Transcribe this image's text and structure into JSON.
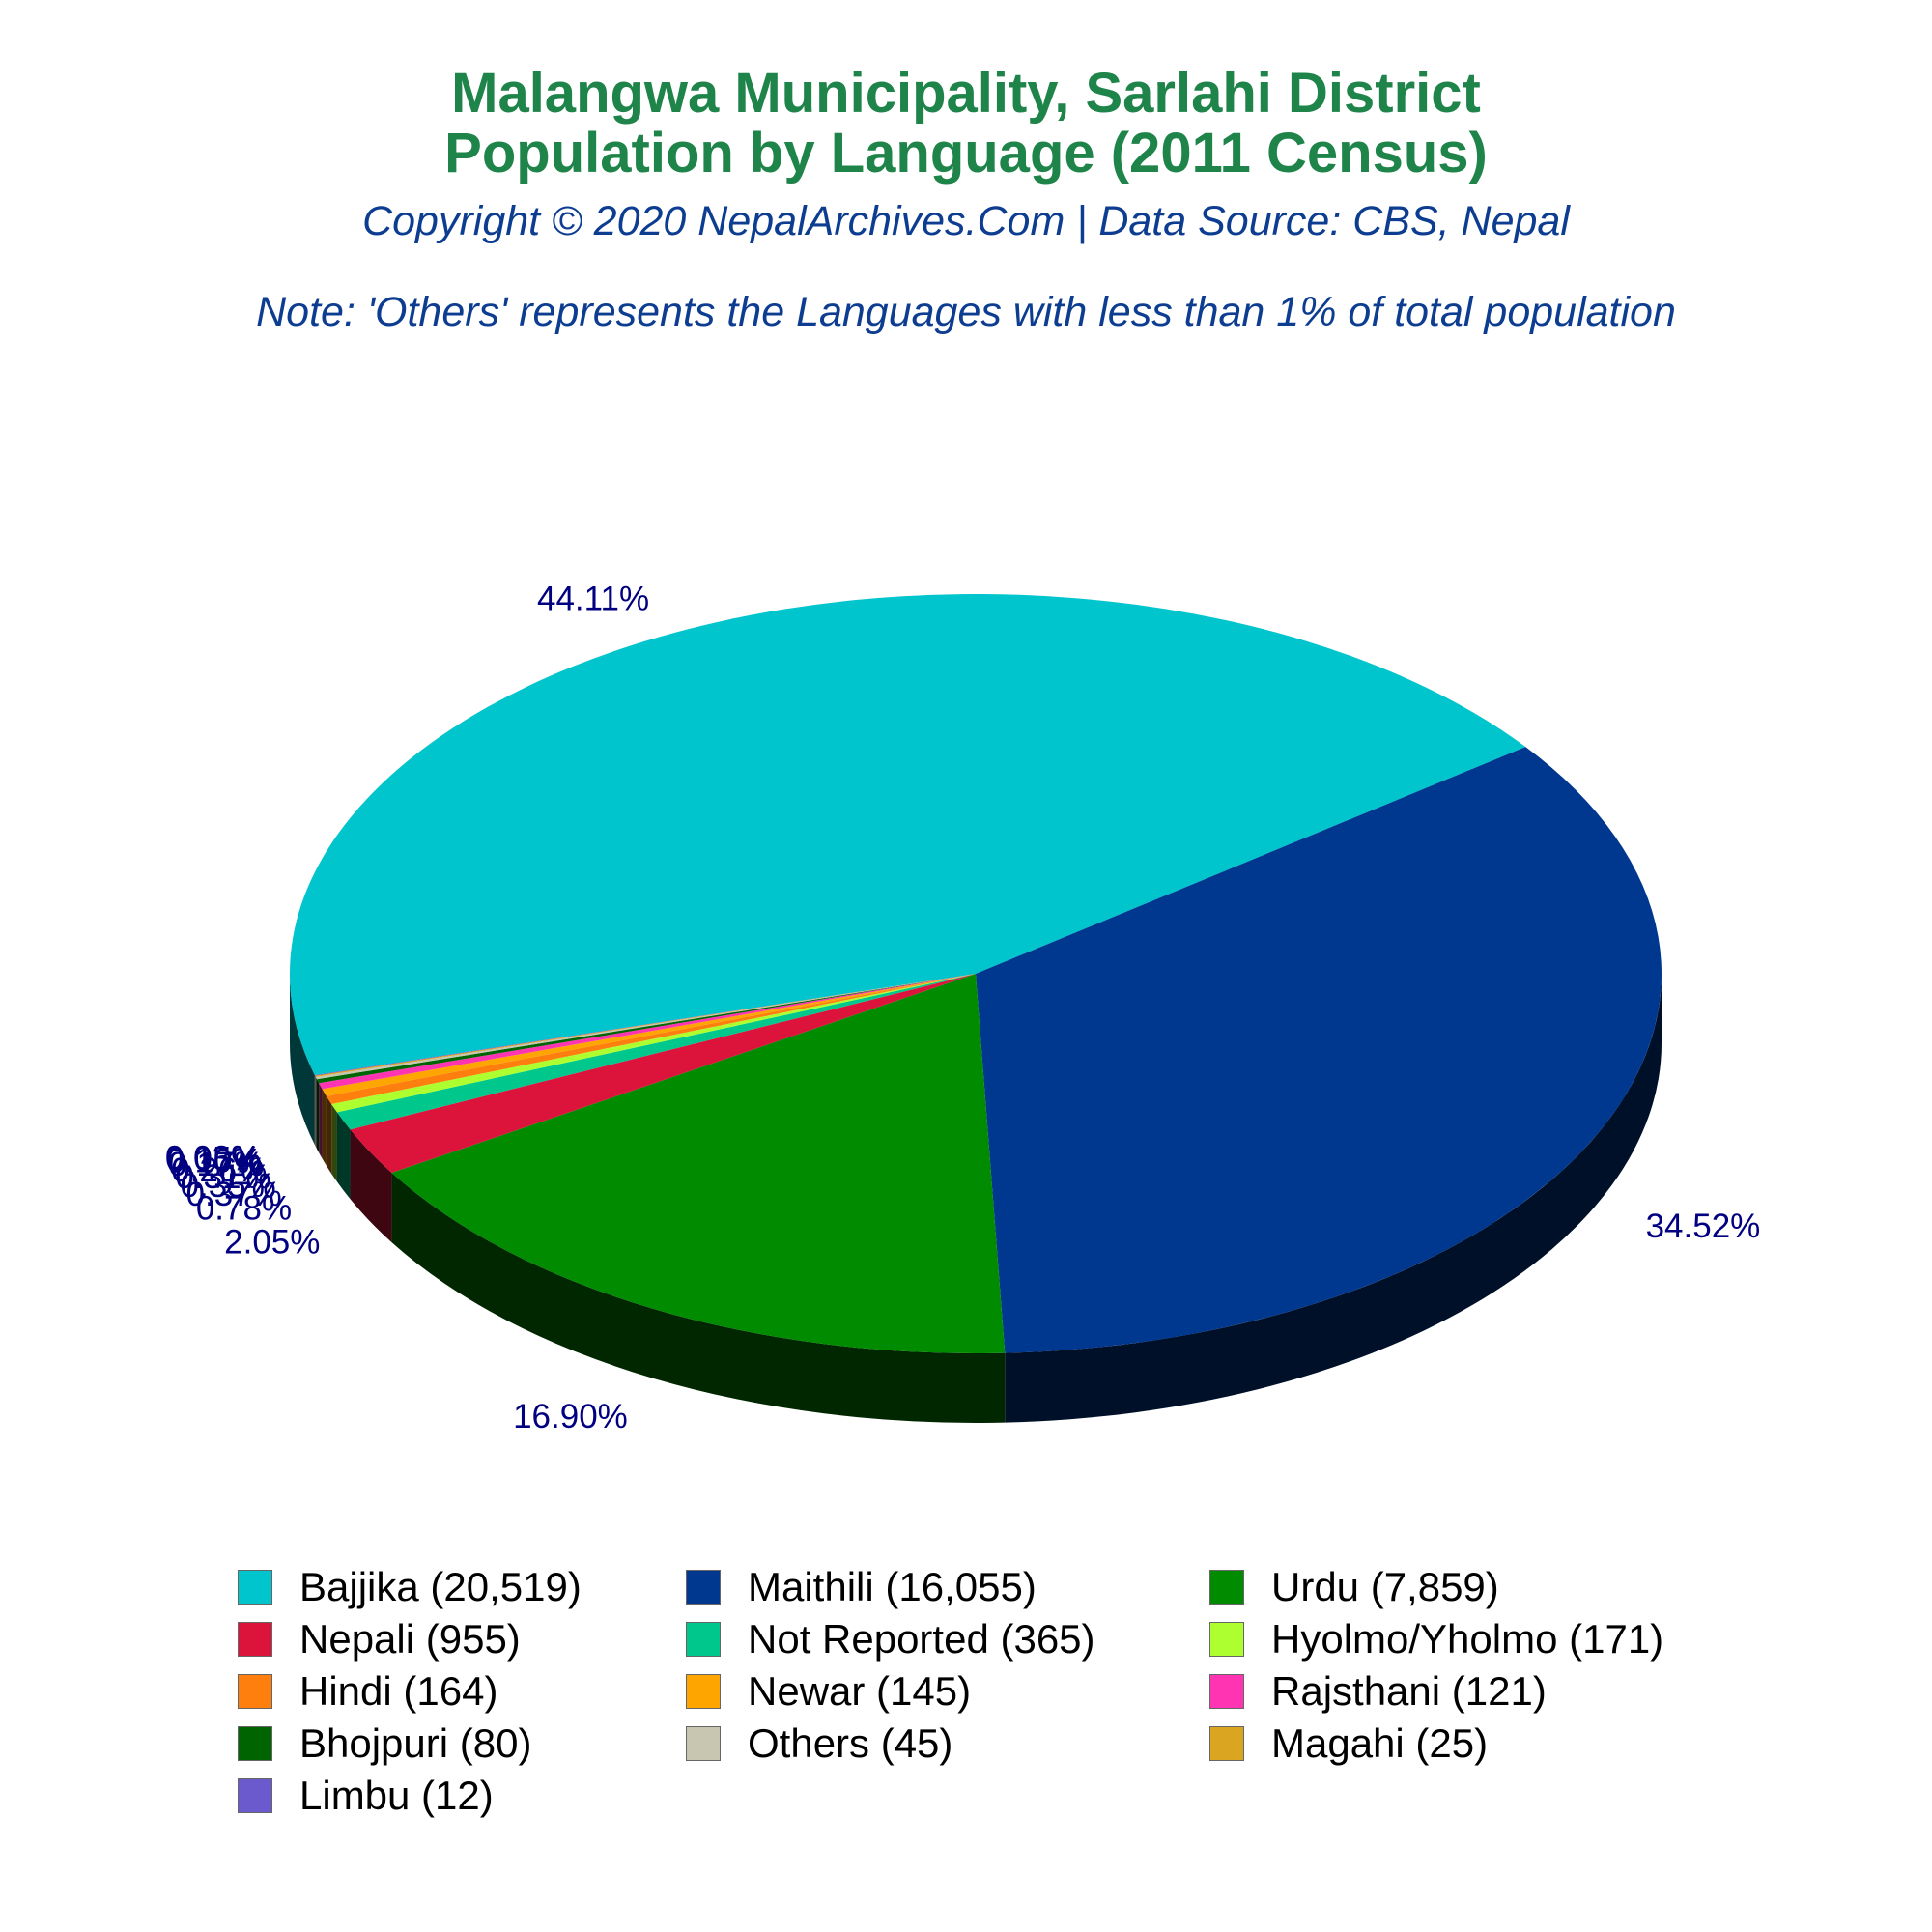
{
  "header": {
    "title_line1": "Malangwa Municipality, Sarlahi District",
    "title_line2": "Population by Language (2011 Census)",
    "copyright": "Copyright © 2020 NepalArchives.Com | Data Source: CBS, Nepal",
    "note": "Note: 'Others' represents the Languages with less than 1% of total population"
  },
  "chart_data": {
    "type": "pie",
    "style": "3d",
    "label_color": "#000080",
    "slices": [
      {
        "label": "Bajjika",
        "value": 20519,
        "percent_label": "44.11%",
        "color": "#00c5cd",
        "legend": "Bajjika (20,519)"
      },
      {
        "label": "Maithili",
        "value": 16055,
        "percent_label": "34.52%",
        "color": "#00388f",
        "legend": "Maithili (16,055)"
      },
      {
        "label": "Urdu",
        "value": 7859,
        "percent_label": "16.90%",
        "color": "#008b00",
        "legend": "Urdu (7,859)"
      },
      {
        "label": "Nepali",
        "value": 955,
        "percent_label": "2.05%",
        "color": "#dc143c",
        "legend": "Nepali (955)"
      },
      {
        "label": "Not Reported",
        "value": 365,
        "percent_label": "0.78%",
        "color": "#00c78c",
        "legend": "Not Reported (365)"
      },
      {
        "label": "Hyolmo/Yholmo",
        "value": 171,
        "percent_label": "0.37%",
        "color": "#adff2f",
        "legend": "Hyolmo/Yholmo (171)"
      },
      {
        "label": "Hindi",
        "value": 164,
        "percent_label": "0.35%",
        "color": "#ff7f0e",
        "legend": "Hindi (164)"
      },
      {
        "label": "Newar",
        "value": 145,
        "percent_label": "0.31%",
        "color": "#ffa500",
        "legend": "Newar (145)"
      },
      {
        "label": "Rajsthani",
        "value": 121,
        "percent_label": "0.26%",
        "color": "#ff34b3",
        "legend": "Rajsthani (121)"
      },
      {
        "label": "Bhojpuri",
        "value": 80,
        "percent_label": "0.17%",
        "color": "#006400",
        "legend": "Bhojpuri (80)"
      },
      {
        "label": "Others",
        "value": 45,
        "percent_label": "0.10%",
        "color": "#c8c6b0",
        "legend": "Others (45)"
      },
      {
        "label": "Magahi",
        "value": 25,
        "percent_label": "0.05%",
        "color": "#daa520",
        "legend": "Magahi (25)"
      },
      {
        "label": "Limbu",
        "value": 12,
        "percent_label": "0.03%",
        "color": "#6a5acd",
        "legend": "Limbu (12)"
      }
    ],
    "legend_position": "bottom"
  }
}
